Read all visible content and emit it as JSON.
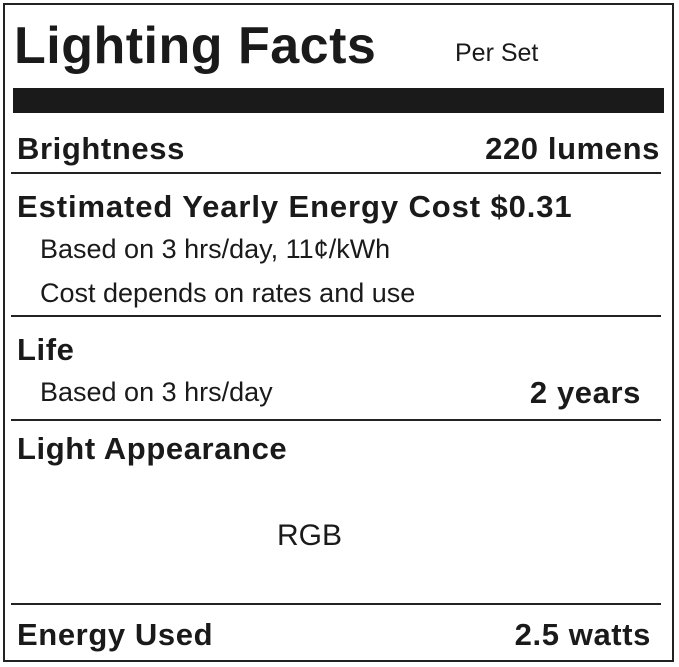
{
  "title": "Lighting Facts",
  "per": "Per Set",
  "brightness": {
    "label": "Brightness",
    "value": "220 lumens"
  },
  "cost": {
    "label": "Estimated Yearly Energy Cost $0.31",
    "basis": "Based on 3 hrs/day, 11¢/kWh",
    "note": "Cost depends on rates and use"
  },
  "life": {
    "label": "Life",
    "basis": "Based on 3 hrs/day",
    "value": "2 years"
  },
  "appearance": {
    "label": "Light Appearance",
    "value": "RGB"
  },
  "energy": {
    "label": "Energy Used",
    "value": "2.5 watts"
  }
}
